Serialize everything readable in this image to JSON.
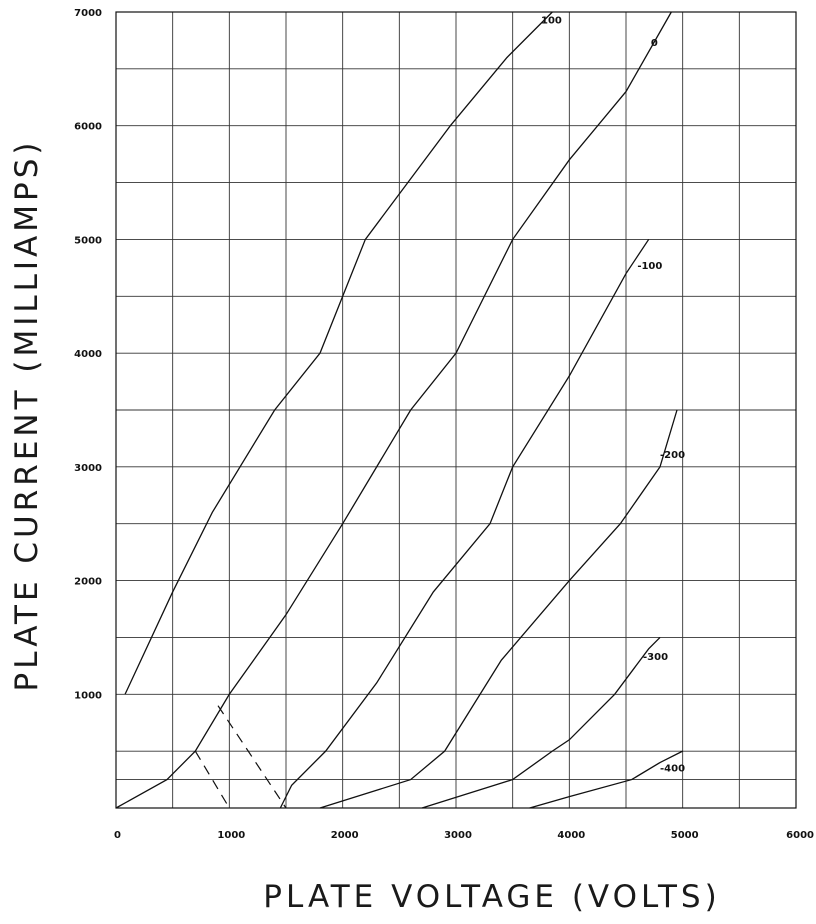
{
  "chart_data": {
    "type": "line",
    "title": "",
    "xlabel": "PLATE VOLTAGE (VOLTS)",
    "ylabel": "PLATE CURRENT (MILLIAMPS)",
    "xlim": [
      0,
      6000
    ],
    "ylim": [
      0,
      7000
    ],
    "x_ticks": [
      0,
      1000,
      2000,
      3000,
      4000,
      5000,
      6000
    ],
    "y_ticks": [
      1000,
      2000,
      3000,
      4000,
      5000,
      6000,
      7000
    ],
    "x_tick_labels": [
      "0",
      "1000",
      "2000",
      "3000",
      "4000",
      "5000",
      "6000"
    ],
    "y_tick_labels": [
      "1000",
      "2000",
      "3000",
      "4000",
      "5000",
      "6000",
      "7000"
    ],
    "grid": true,
    "x_grid_step": 500,
    "y_grid_lines": [
      250,
      500,
      1000,
      1500,
      2000,
      2500,
      3000,
      3500,
      4000,
      4500,
      5000,
      5500,
      6000,
      6500,
      7000
    ],
    "series": [
      {
        "name": "100",
        "label_at": [
          3750,
          6900
        ],
        "points": [
          [
            80,
            1000
          ],
          [
            500,
            1900
          ],
          [
            850,
            2600
          ],
          [
            1400,
            3500
          ],
          [
            1800,
            4000
          ],
          [
            2200,
            5000
          ],
          [
            2950,
            6000
          ],
          [
            3450,
            6600
          ],
          [
            3850,
            7000
          ]
        ]
      },
      {
        "name": "0",
        "label_at": [
          4720,
          6700
        ],
        "points": [
          [
            0,
            0
          ],
          [
            450,
            250
          ],
          [
            700,
            500
          ],
          [
            1000,
            1000
          ],
          [
            1500,
            1700
          ],
          [
            2000,
            2500
          ],
          [
            2300,
            3000
          ],
          [
            2600,
            3500
          ],
          [
            3000,
            4000
          ],
          [
            3500,
            5000
          ],
          [
            4000,
            5700
          ],
          [
            4500,
            6300
          ],
          [
            4900,
            7000
          ]
        ]
      },
      {
        "name": "-100",
        "label_at": [
          4600,
          4740
        ],
        "points": [
          [
            1450,
            0
          ],
          [
            1550,
            200
          ],
          [
            1850,
            500
          ],
          [
            2300,
            1100
          ],
          [
            2800,
            1900
          ],
          [
            3300,
            2500
          ],
          [
            3500,
            3000
          ],
          [
            4000,
            3800
          ],
          [
            4500,
            4700
          ],
          [
            4700,
            5000
          ]
        ]
      },
      {
        "name": "-200",
        "label_at": [
          4800,
          3080
        ],
        "points": [
          [
            1800,
            0
          ],
          [
            2600,
            250
          ],
          [
            2900,
            500
          ],
          [
            3400,
            1300
          ],
          [
            4000,
            2000
          ],
          [
            4450,
            2500
          ],
          [
            4800,
            3000
          ],
          [
            4950,
            3500
          ]
        ]
      },
      {
        "name": "-300",
        "label_at": [
          4650,
          1300
        ],
        "points": [
          [
            2700,
            0
          ],
          [
            3500,
            250
          ],
          [
            3850,
            500
          ],
          [
            4000,
            600
          ],
          [
            4400,
            1000
          ],
          [
            4700,
            1400
          ],
          [
            4800,
            1500
          ]
        ]
      },
      {
        "name": "-400",
        "label_at": [
          4800,
          320
        ],
        "points": [
          [
            3650,
            0
          ],
          [
            4000,
            100
          ],
          [
            4550,
            250
          ],
          [
            4800,
            400
          ],
          [
            5000,
            500
          ]
        ]
      }
    ],
    "dashed_lines": [
      {
        "points": [
          [
            700,
            500
          ],
          [
            1000,
            0
          ]
        ]
      },
      {
        "points": [
          [
            900,
            900
          ],
          [
            1200,
            450
          ],
          [
            1500,
            0
          ]
        ]
      }
    ]
  }
}
